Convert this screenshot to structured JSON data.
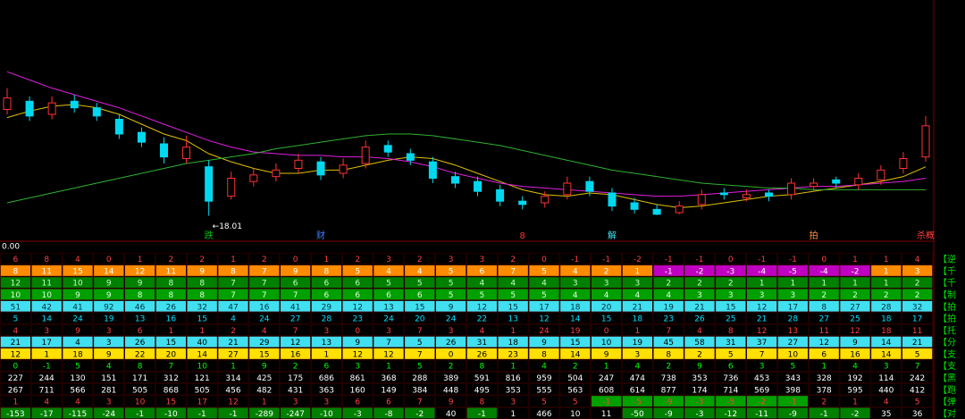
{
  "chart_data": {
    "type": "candlestick",
    "categories": [
      null,
      null,
      null,
      null,
      null,
      null,
      null,
      null,
      null,
      "跌",
      null,
      null,
      null,
      null,
      "财",
      null,
      null,
      null,
      null,
      null,
      null,
      null,
      null,
      "8",
      null,
      null,
      null,
      "解",
      null,
      null,
      null,
      null,
      null,
      null,
      null,
      null,
      "拍",
      null,
      null,
      null,
      null,
      "杀概"
    ],
    "category_colors": [
      null,
      null,
      null,
      null,
      null,
      null,
      null,
      null,
      null,
      "#00c000",
      null,
      null,
      null,
      null,
      "#4080ff",
      null,
      null,
      null,
      null,
      null,
      null,
      null,
      null,
      "#ff3030",
      null,
      null,
      null,
      "#40e0f0",
      null,
      null,
      null,
      null,
      null,
      null,
      null,
      null,
      "#ff9040",
      null,
      null,
      null,
      null,
      "#ff4040"
    ],
    "open": [
      24.5,
      25.0,
      24.2,
      25.0,
      24.6,
      23.9,
      23.1,
      22.4,
      21.5,
      21.0,
      19.2,
      20.1,
      20.4,
      20.9,
      21.3,
      20.6,
      21.2,
      22.3,
      21.8,
      21.3,
      20.4,
      20.1,
      19.6,
      18.9,
      18.8,
      19.3,
      20.1,
      19.4,
      18.8,
      18.4,
      18.2,
      18.7,
      19.4,
      19.1,
      19.4,
      19.3,
      19.8,
      20.2,
      19.9,
      20.2,
      20.9,
      21.6
    ],
    "high": [
      25.8,
      25.3,
      25.3,
      25.4,
      24.9,
      24.2,
      23.4,
      22.8,
      22.9,
      21.4,
      20.7,
      20.9,
      21.2,
      21.8,
      21.6,
      21.5,
      22.6,
      22.6,
      22.1,
      21.6,
      20.7,
      20.4,
      19.9,
      19.2,
      19.5,
      20.4,
      20.4,
      19.7,
      19.1,
      18.7,
      18.9,
      19.6,
      19.7,
      19.6,
      19.6,
      20.3,
      20.3,
      20.4,
      20.6,
      21.1,
      21.9,
      24.1
    ],
    "low": [
      24.2,
      23.8,
      23.9,
      24.3,
      23.8,
      22.7,
      22.2,
      21.2,
      21.2,
      18.01,
      19.0,
      19.8,
      20.1,
      20.6,
      20.2,
      20.3,
      20.9,
      21.6,
      21.1,
      20.0,
      19.7,
      19.2,
      18.6,
      18.4,
      18.5,
      19.0,
      19.2,
      18.3,
      18.15,
      18.05,
      18.1,
      18.4,
      19.0,
      18.9,
      18.9,
      19.0,
      19.5,
      19.7,
      19.6,
      19.9,
      20.6,
      21.3
    ],
    "close": [
      25.2,
      24.1,
      24.9,
      24.6,
      24.1,
      23.0,
      22.5,
      21.6,
      22.2,
      18.9,
      20.3,
      20.5,
      20.8,
      21.4,
      20.5,
      21.1,
      22.2,
      21.9,
      21.4,
      20.3,
      20.0,
      19.5,
      18.9,
      18.7,
      19.2,
      20.0,
      19.5,
      18.6,
      18.4,
      18.1,
      18.6,
      19.3,
      19.3,
      19.3,
      19.2,
      20.0,
      20.0,
      20.0,
      20.3,
      20.8,
      21.5,
      23.5
    ],
    "up_color": "#ff3232",
    "down_color": "#00d8f0",
    "series": [
      {
        "color": "#e0c000",
        "values": [
          24.0,
          24.4,
          24.7,
          24.8,
          24.6,
          24.2,
          23.6,
          23.0,
          22.6,
          21.8,
          21.3,
          20.9,
          20.6,
          20.6,
          20.8,
          20.8,
          21.1,
          21.4,
          21.6,
          21.5,
          21.1,
          20.6,
          20.1,
          19.6,
          19.3,
          19.2,
          19.4,
          19.3,
          19.0,
          18.7,
          18.5,
          18.6,
          18.8,
          19.0,
          19.2,
          19.3,
          19.5,
          19.7,
          19.9,
          20.1,
          20.4,
          21.0
        ]
      },
      {
        "color": "#e020e0",
        "values": [
          26.8,
          26.3,
          25.8,
          25.4,
          25.0,
          24.6,
          24.1,
          23.6,
          23.1,
          22.6,
          22.2,
          21.9,
          21.8,
          21.7,
          21.7,
          21.6,
          21.6,
          21.5,
          21.3,
          21.0,
          20.6,
          20.3,
          20.0,
          19.8,
          19.7,
          19.6,
          19.5,
          19.4,
          19.3,
          19.2,
          19.2,
          19.3,
          19.4,
          19.5,
          19.6,
          19.7,
          19.8,
          19.8,
          19.9,
          20.0,
          20.1,
          20.3
        ]
      },
      {
        "color": "#30b030",
        "values": [
          18.8,
          19.1,
          19.4,
          19.7,
          20.0,
          20.3,
          20.6,
          20.9,
          21.2,
          21.4,
          21.6,
          21.8,
          22.1,
          22.3,
          22.5,
          22.7,
          22.9,
          23.0,
          23.0,
          22.9,
          22.7,
          22.5,
          22.3,
          22.0,
          21.7,
          21.4,
          21.1,
          20.8,
          20.6,
          20.4,
          20.2,
          20.0,
          19.9,
          19.8,
          19.7,
          19.7,
          19.6,
          19.6,
          19.6,
          19.6,
          19.6,
          19.6
        ]
      }
    ],
    "ylim": [
      17,
      29
    ],
    "annotation": "←18.01",
    "annotation_color": "#ffffff"
  },
  "indicator_panel": {
    "label": "0.00",
    "rows": [
      {
        "label": "【逆",
        "fill": "#000000",
        "text_color": "#ff4040",
        "values": [
          6,
          8,
          4,
          0,
          1,
          2,
          2,
          1,
          2,
          0,
          1,
          2,
          3,
          2,
          3,
          3,
          2,
          0,
          -1,
          -1,
          -2,
          -1,
          -1,
          0,
          -1,
          -1,
          0,
          1,
          1,
          4
        ]
      },
      {
        "label": "【千",
        "fill": "#ff8c00",
        "neg_fill": "#c000c0",
        "text_color": "#ffffff",
        "values": [
          8,
          11,
          15,
          14,
          12,
          11,
          9,
          8,
          7,
          9,
          8,
          5,
          4,
          4,
          5,
          6,
          7,
          5,
          4,
          2,
          1,
          -1,
          -2,
          -3,
          -4,
          -5,
          -4,
          -2,
          1,
          3
        ]
      },
      {
        "label": "【千",
        "fill": "#008000",
        "text_color": "#c0ffc0",
        "values": [
          12,
          11,
          10,
          9,
          9,
          8,
          8,
          7,
          7,
          6,
          6,
          6,
          5,
          5,
          5,
          4,
          4,
          4,
          3,
          3,
          3,
          2,
          2,
          2,
          1,
          1,
          1,
          1,
          1,
          2
        ]
      },
      {
        "label": "【制",
        "fill": "#00a000",
        "text_color": "#e0ffe0",
        "values": [
          10,
          10,
          9,
          9,
          8,
          8,
          8,
          7,
          7,
          7,
          6,
          6,
          6,
          6,
          5,
          5,
          5,
          5,
          4,
          4,
          4,
          4,
          3,
          3,
          3,
          3,
          2,
          2,
          2,
          2
        ]
      },
      {
        "label": "【拍",
        "fill": "#40e0f0",
        "text_color": "#003040",
        "values": [
          51,
          42,
          41,
          92,
          46,
          26,
          32,
          47,
          16,
          41,
          29,
          12,
          13,
          15,
          9,
          12,
          15,
          17,
          18,
          20,
          21,
          19,
          21,
          15,
          12,
          17,
          8,
          27,
          28,
          32
        ]
      },
      {
        "label": "【拍",
        "fill": "#000000",
        "text_color": "#00e0ff",
        "values": [
          5,
          14,
          24,
          19,
          13,
          16,
          15,
          4,
          24,
          27,
          28,
          23,
          24,
          20,
          24,
          22,
          13,
          12,
          14,
          15,
          18,
          23,
          26,
          25,
          21,
          28,
          27,
          25,
          18,
          17
        ]
      },
      {
        "label": "【托",
        "fill": "#000000",
        "text_color": "#ff4040",
        "values": [
          4,
          3,
          9,
          3,
          6,
          1,
          1,
          2,
          4,
          7,
          3,
          0,
          3,
          7,
          3,
          4,
          1,
          24,
          19,
          0,
          1,
          7,
          4,
          8,
          12,
          13,
          11,
          12,
          18,
          11
        ]
      },
      {
        "label": "【分",
        "fill": "#40e0f0",
        "text_color": "#000000",
        "values": [
          21,
          17,
          4,
          3,
          26,
          15,
          40,
          21,
          29,
          12,
          13,
          9,
          7,
          5,
          26,
          31,
          18,
          9,
          15,
          10,
          19,
          45,
          58,
          31,
          37,
          27,
          12,
          9,
          14,
          21
        ]
      },
      {
        "label": "【支",
        "fill": "#ffe000",
        "text_color": "#000000",
        "values": [
          12,
          1,
          18,
          9,
          22,
          20,
          14,
          27,
          15,
          16,
          1,
          12,
          12,
          7,
          0,
          26,
          23,
          8,
          14,
          9,
          3,
          8,
          2,
          5,
          7,
          10,
          6,
          16,
          14,
          5
        ]
      },
      {
        "label": "【支",
        "fill": "#000000",
        "text_color": "#00ff00",
        "values": [
          0,
          -1,
          5,
          4,
          8,
          7,
          10,
          1,
          9,
          2,
          6,
          3,
          1,
          5,
          2,
          8,
          1,
          4,
          2,
          1,
          4,
          2,
          9,
          6,
          3,
          5,
          1,
          4,
          3,
          7
        ]
      },
      {
        "label": "【黑",
        "fill": "#000000",
        "text_color": "#ffffff",
        "values": [
          227,
          244,
          130,
          151,
          171,
          312,
          121,
          314,
          425,
          175,
          686,
          861,
          368,
          288,
          389,
          591,
          816,
          959,
          504,
          247,
          474,
          738,
          353,
          736,
          453,
          343,
          328,
          192,
          114,
          242
        ]
      },
      {
        "label": "【跑",
        "fill": "#000000",
        "text_color": "#ffffff",
        "values": [
          267,
          711,
          566,
          281,
          505,
          868,
          505,
          456,
          482,
          431,
          363,
          160,
          149,
          384,
          448,
          495,
          353,
          555,
          563,
          608,
          614,
          877,
          174,
          714,
          569,
          398,
          378,
          595,
          440,
          412
        ]
      },
      {
        "label": "【弹",
        "fill": "#000000",
        "neg_fill": "#00a000",
        "text_color": "#ff4040",
        "values": [
          1,
          4,
          4,
          3,
          10,
          15,
          17,
          12,
          1,
          3,
          3,
          6,
          6,
          7,
          9,
          8,
          3,
          5,
          5,
          -1,
          -5,
          -9,
          -3,
          -5,
          -2,
          -1,
          2,
          1,
          4,
          5
        ]
      },
      {
        "label": "【对",
        "fill": "#000000",
        "neg_fill": "#008000",
        "text_color": "#ffffff",
        "values": [
          -153,
          -17,
          -115,
          -24,
          -1,
          -10,
          -1,
          -1,
          -289,
          -247,
          -10,
          -3,
          -8,
          -2,
          40,
          -1,
          1,
          466,
          10,
          11,
          -50,
          -9,
          -3,
          -12,
          -11,
          -9,
          -1,
          -2,
          35,
          36
        ]
      }
    ]
  }
}
